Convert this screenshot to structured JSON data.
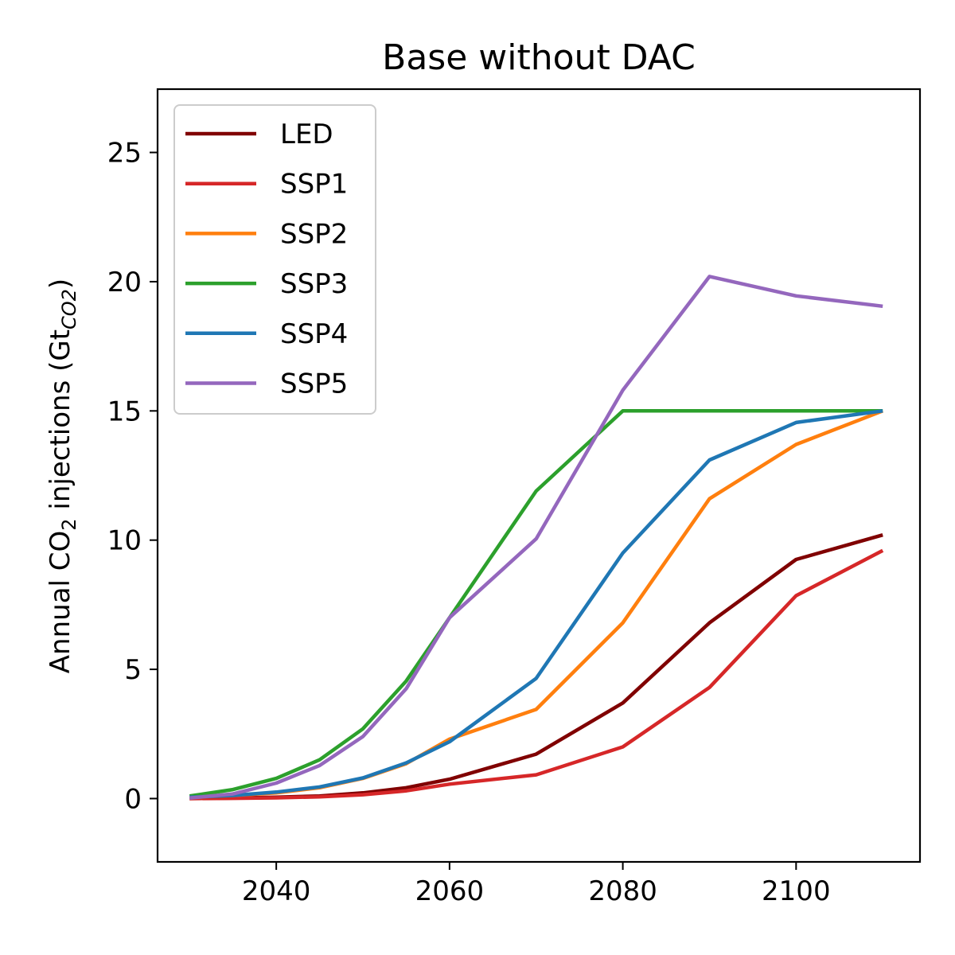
{
  "chart_data": {
    "type": "line",
    "title": "Base without DAC",
    "xlabel": "",
    "ylabel": {
      "prefix": "Annual CO",
      "prefix_sub": "2",
      "middle": " injections (Gt",
      "unit_sub": "CO2",
      "suffix": ")"
    },
    "xlim": [
      2026.3,
      2114.3
    ],
    "ylim": [
      -2.45,
      27.45
    ],
    "xticks": [
      2040,
      2060,
      2080,
      2100
    ],
    "yticks": [
      0,
      5,
      10,
      15,
      20,
      25
    ],
    "grid": false,
    "legend_position": "upper-left",
    "x": [
      2030,
      2035,
      2040,
      2045,
      2050,
      2055,
      2060,
      2070,
      2080,
      2090,
      2100,
      2110
    ],
    "series": [
      {
        "name": "LED",
        "color": "#800000",
        "values": [
          0.0,
          0.02,
          0.05,
          0.1,
          0.22,
          0.42,
          0.75,
          1.72,
          3.7,
          6.8,
          9.25,
          10.2
        ]
      },
      {
        "name": "SSP1",
        "color": "#d62728",
        "values": [
          0.0,
          0.01,
          0.03,
          0.07,
          0.15,
          0.3,
          0.56,
          0.92,
          2.0,
          4.3,
          7.85,
          9.6
        ]
      },
      {
        "name": "SSP2",
        "color": "#ff7f0e",
        "values": [
          0.05,
          0.12,
          0.22,
          0.42,
          0.78,
          1.35,
          2.3,
          3.45,
          6.8,
          11.6,
          13.7,
          15.0
        ]
      },
      {
        "name": "SSP3",
        "color": "#2ca02c",
        "values": [
          0.1,
          0.35,
          0.78,
          1.5,
          2.7,
          4.55,
          7.0,
          11.9,
          15.0,
          15.0,
          15.0,
          15.0
        ]
      },
      {
        "name": "SSP4",
        "color": "#1f77b4",
        "values": [
          0.05,
          0.12,
          0.25,
          0.45,
          0.8,
          1.38,
          2.2,
          4.65,
          9.5,
          13.1,
          14.55,
          15.0
        ]
      },
      {
        "name": "SSP5",
        "color": "#9467bd",
        "values": [
          0.02,
          0.18,
          0.6,
          1.28,
          2.4,
          4.25,
          7.0,
          10.05,
          15.8,
          20.2,
          19.45,
          19.05
        ]
      }
    ]
  }
}
